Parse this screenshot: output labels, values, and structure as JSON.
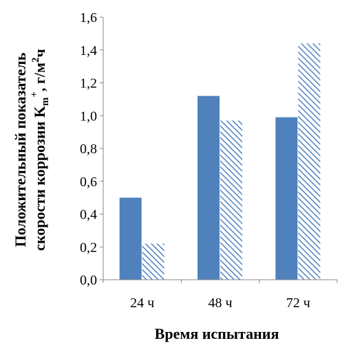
{
  "chart_data": {
    "type": "bar",
    "categories": [
      "24 ч",
      "48 ч",
      "72 ч"
    ],
    "series": [
      {
        "values": [
          0.5,
          1.12,
          0.99
        ],
        "fill": "solid",
        "color": "#4f81bd"
      },
      {
        "values": [
          0.22,
          0.97,
          1.44
        ],
        "fill": "hatched",
        "color": "#4f81bd"
      }
    ],
    "ylim": [
      0,
      1.6
    ],
    "yticks": [
      "0,0",
      "0,2",
      "0,4",
      "0,6",
      "0,8",
      "1,0",
      "1,2",
      "1,4",
      "1,6"
    ],
    "xlabel": "Время испытания",
    "ylabel_line1": "Положительный показатель",
    "ylabel_line2_prefix": "скорости коррозии K",
    "ylabel_line2_sub": "m",
    "ylabel_line2_sup": "+",
    "ylabel_line2_unit": ", г/м",
    "ylabel_line2_unit_sup": "2",
    "ylabel_line2_unit_end": "ч",
    "grid": false,
    "legend": "none"
  }
}
